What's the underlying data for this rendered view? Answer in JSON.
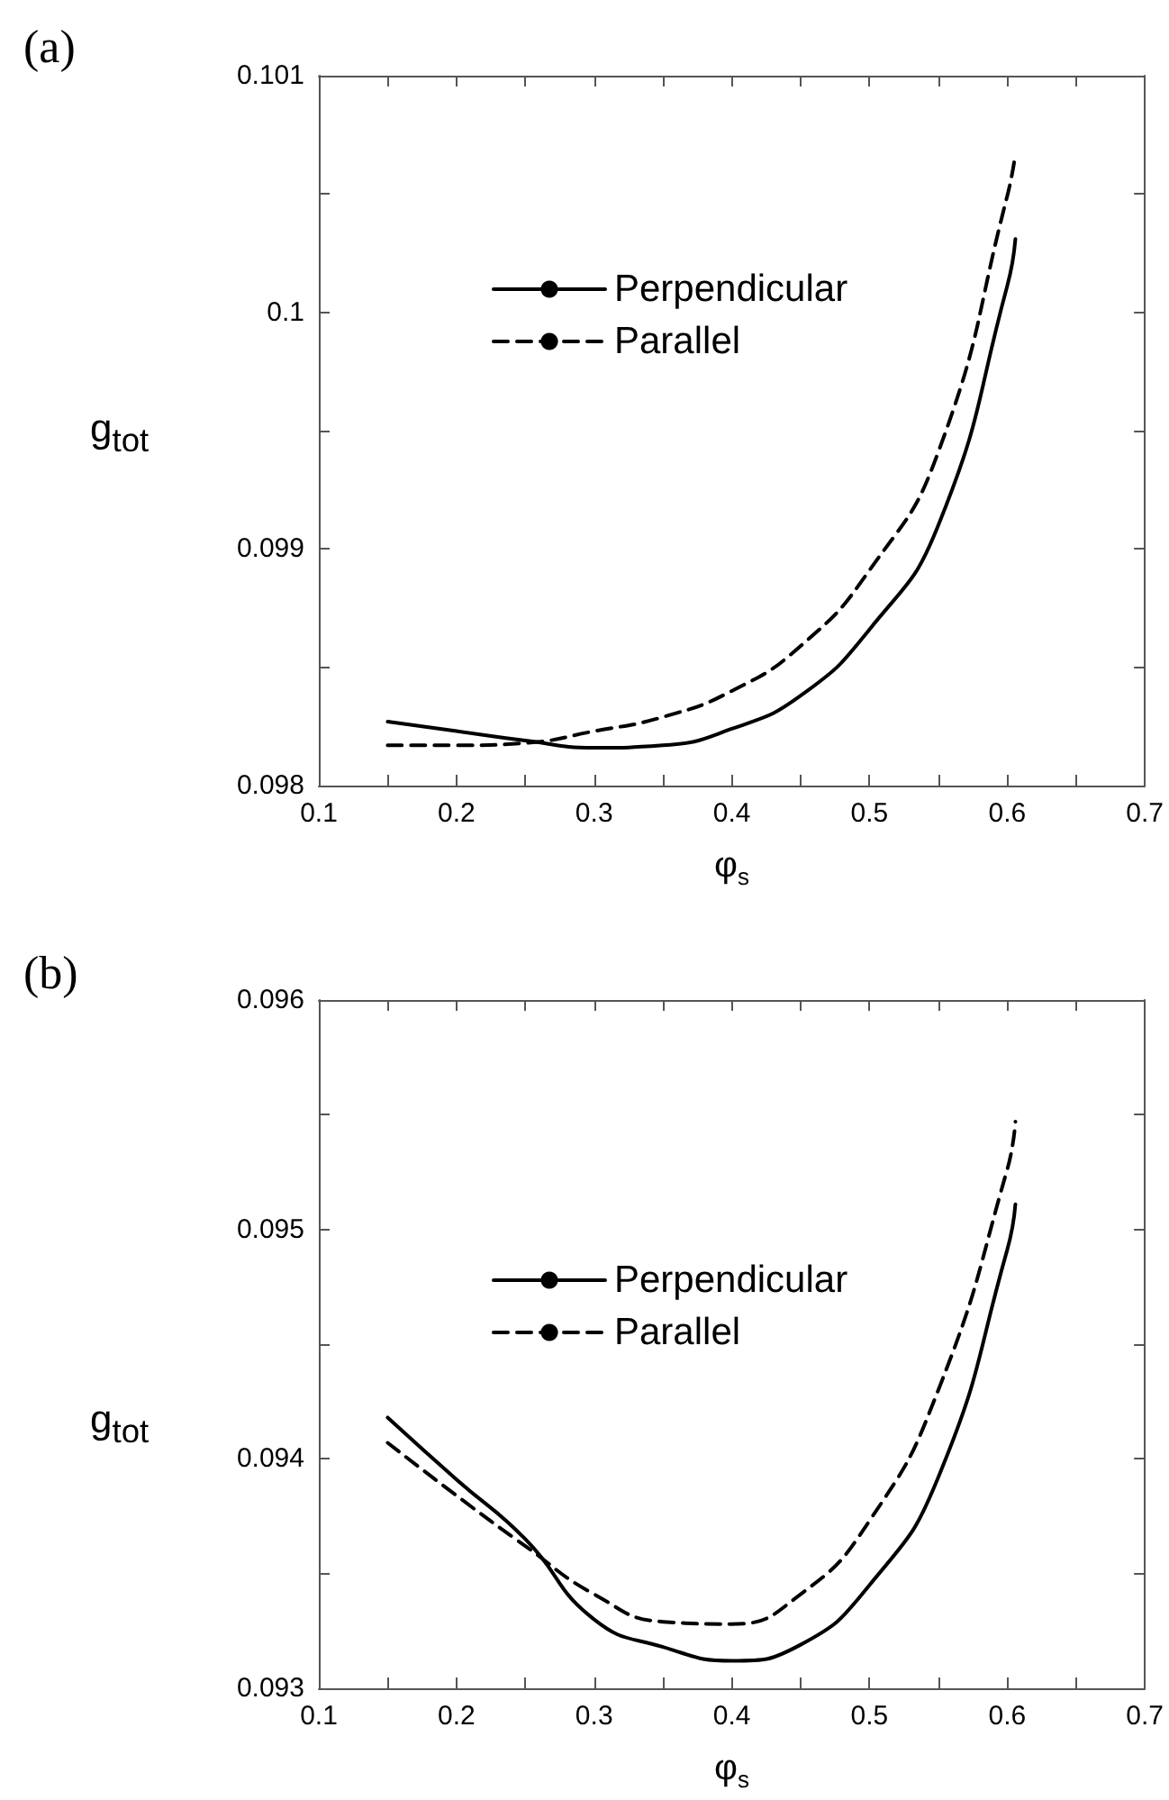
{
  "chart_data": [
    {
      "type": "line",
      "title": "(a)",
      "xlabel": "φ$_{s}$",
      "ylabel": "g$_{tot}$",
      "x": [
        0.15,
        0.2,
        0.25,
        0.3,
        0.35,
        0.4,
        0.45,
        0.5,
        0.55,
        0.6,
        0.606
      ],
      "series": [
        {
          "name": "Perpendicular",
          "color": "#000000",
          "line_style": "solid",
          "values": [
            0.09827,
            0.09823,
            0.09819,
            0.09816,
            0.09817,
            0.09824,
            0.09838,
            0.09866,
            0.0991,
            0.10011,
            0.10031
          ]
        },
        {
          "name": "Parallel",
          "color": "#000000",
          "line_style": "dashed",
          "values": [
            0.09817,
            0.09817,
            0.09818,
            0.09823,
            0.09829,
            0.0984,
            0.09859,
            0.09891,
            0.09941,
            0.10049,
            0.10067
          ]
        }
      ],
      "xlim": [
        0.1,
        0.7
      ],
      "xticks": [
        0.1,
        {
          "value": 0.15,
          "label": null
        },
        0.2,
        {
          "value": 0.25,
          "label": null
        },
        0.3,
        {
          "value": 0.35,
          "label": null
        },
        0.4,
        {
          "value": 0.45,
          "label": null
        },
        0.5,
        {
          "value": 0.55,
          "label": null
        },
        0.6,
        {
          "value": 0.65,
          "label": null
        },
        0.7
      ],
      "ylim": [
        0.098,
        0.101
      ],
      "yticks": [
        0.098,
        {
          "value": 0.0985,
          "label": null
        },
        0.099,
        {
          "value": 0.0995,
          "label": null
        },
        0.1,
        {
          "value": 0.1005,
          "label": null
        },
        0.101
      ],
      "grid": false,
      "legend": "top",
      "marker": "none"
    },
    {
      "type": "line",
      "title": "(b)",
      "xlabel": "φ$_{s}$",
      "ylabel": "g$_{tot}$",
      "x": [
        0.15,
        0.2,
        0.25,
        0.3,
        0.35,
        0.4,
        0.45,
        0.5,
        0.55,
        0.6,
        0.606
      ],
      "series": [
        {
          "name": "Perpendicular",
          "color": "#000000",
          "line_style": "solid",
          "values": [
            0.09418,
            0.09391,
            0.09365,
            0.0933,
            0.09318,
            0.09312,
            0.09319,
            0.09345,
            0.09392,
            0.09491,
            0.09511
          ]
        },
        {
          "name": "Parallel",
          "color": "#000000",
          "line_style": "dashed",
          "values": [
            0.09407,
            0.09384,
            0.09362,
            0.09341,
            0.09329,
            0.09328,
            0.09341,
            0.09373,
            0.0943,
            0.09526,
            0.09547
          ]
        }
      ],
      "xlim": [
        0.1,
        0.7
      ],
      "xticks": [
        0.1,
        {
          "value": 0.15,
          "label": null
        },
        0.2,
        {
          "value": 0.25,
          "label": null
        },
        0.3,
        {
          "value": 0.35,
          "label": null
        },
        0.4,
        {
          "value": 0.45,
          "label": null
        },
        0.5,
        {
          "value": 0.55,
          "label": null
        },
        0.6,
        {
          "value": 0.65,
          "label": null
        },
        0.7
      ],
      "ylim": [
        0.093,
        0.096
      ],
      "yticks": [
        0.093,
        {
          "value": 0.0935,
          "label": null
        },
        0.094,
        {
          "value": 0.0945,
          "label": null
        },
        0.095,
        {
          "value": 0.0955,
          "label": null
        },
        0.096
      ],
      "grid": false,
      "legend": "top",
      "marker": "none"
    }
  ]
}
